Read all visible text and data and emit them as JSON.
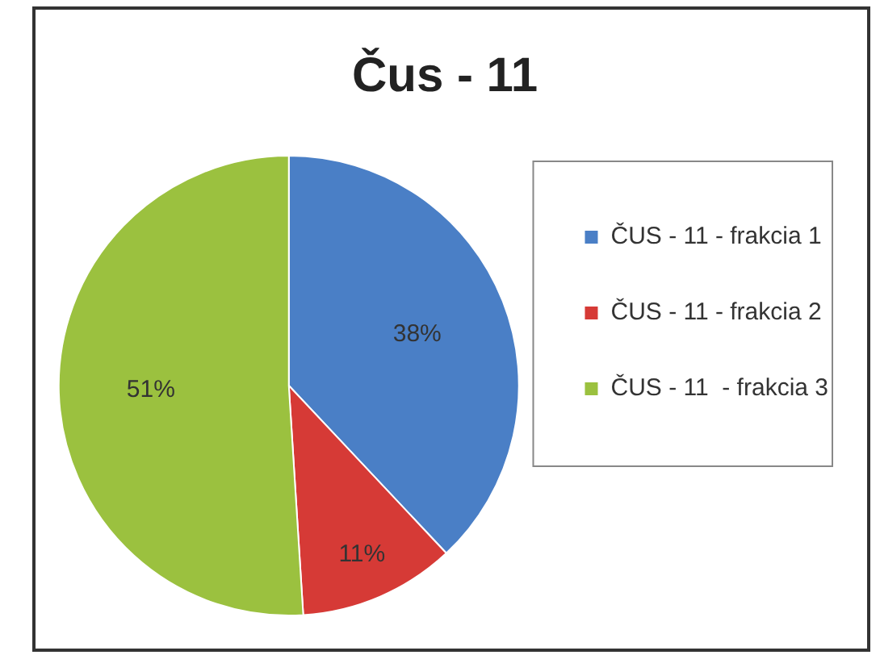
{
  "chart_data": {
    "type": "pie",
    "title": "Čus - 11",
    "categories": [
      "ČUS - 11 - frakcia 1",
      "ČUS - 11 - frakcia 2",
      "ČUS - 11  - frakcia 3"
    ],
    "values": [
      38,
      11,
      51
    ],
    "colors": [
      "#4a7fc6",
      "#d63a36",
      "#9bc13f"
    ],
    "value_labels": [
      "38%",
      "11%",
      "51%"
    ],
    "legend": "right"
  }
}
